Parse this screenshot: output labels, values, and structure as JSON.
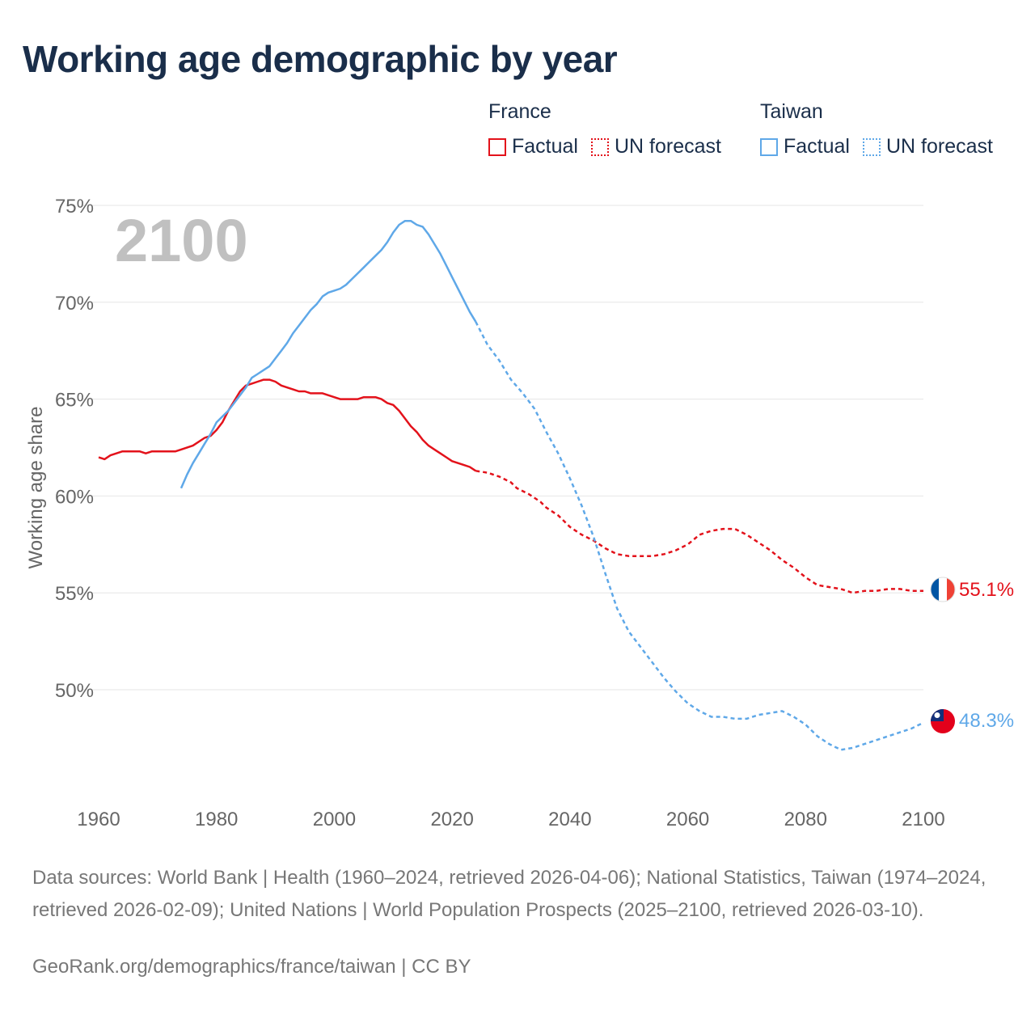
{
  "title": "Working age demographic by year",
  "legend": {
    "groups": [
      {
        "name": "France",
        "factual_label": "Factual",
        "forecast_label": "UN forecast",
        "color": "#e3121b"
      },
      {
        "name": "Taiwan",
        "factual_label": "Factual",
        "forecast_label": "UN forecast",
        "color": "#5fa8e8"
      }
    ]
  },
  "footer": {
    "sources": "Data sources: World Bank | Health (1960–2024, retrieved 2026-04-06); National Statistics, Taiwan (1974–2024, retrieved 2026-02-09); United Nations | World Population Prospects (2025–2100, retrieved 2026-03-10).",
    "credit": "GeoRank.org/demographics/france/taiwan | CC BY"
  },
  "chart_data": {
    "type": "line",
    "title": "Working age demographic by year",
    "year_label": "2100",
    "ylabel": "Working age share",
    "xlabel": "",
    "xlim": [
      1960,
      2100
    ],
    "ylim": [
      45,
      75
    ],
    "x_ticks": [
      1960,
      1980,
      2000,
      2020,
      2040,
      2060,
      2080,
      2100
    ],
    "x_tick_labels": [
      "1960",
      "1980",
      "2000",
      "2020",
      "2040",
      "2060",
      "2080",
      "2100"
    ],
    "y_ticks": [
      50,
      55,
      60,
      65,
      70,
      75
    ],
    "y_tick_labels": [
      "50%",
      "55%",
      "60%",
      "65%",
      "70%",
      "75%"
    ],
    "grid": true,
    "legend_position": "top-right",
    "series": [
      {
        "name": "France",
        "color": "#e3121b",
        "end_label": "55.1%",
        "factual": [
          [
            1960,
            62.0
          ],
          [
            1961,
            61.9
          ],
          [
            1962,
            62.1
          ],
          [
            1963,
            62.2
          ],
          [
            1964,
            62.3
          ],
          [
            1965,
            62.3
          ],
          [
            1966,
            62.3
          ],
          [
            1967,
            62.3
          ],
          [
            1968,
            62.2
          ],
          [
            1969,
            62.3
          ],
          [
            1970,
            62.3
          ],
          [
            1972,
            62.3
          ],
          [
            1973,
            62.3
          ],
          [
            1974,
            62.4
          ],
          [
            1976,
            62.6
          ],
          [
            1978,
            63.0
          ],
          [
            1979,
            63.1
          ],
          [
            1980,
            63.4
          ],
          [
            1981,
            63.8
          ],
          [
            1982,
            64.4
          ],
          [
            1983,
            64.9
          ],
          [
            1984,
            65.4
          ],
          [
            1985,
            65.7
          ],
          [
            1986,
            65.8
          ],
          [
            1987,
            65.9
          ],
          [
            1988,
            66.0
          ],
          [
            1989,
            66.0
          ],
          [
            1990,
            65.9
          ],
          [
            1991,
            65.7
          ],
          [
            1992,
            65.6
          ],
          [
            1993,
            65.5
          ],
          [
            1994,
            65.4
          ],
          [
            1995,
            65.4
          ],
          [
            1996,
            65.3
          ],
          [
            1997,
            65.3
          ],
          [
            1998,
            65.3
          ],
          [
            1999,
            65.2
          ],
          [
            2000,
            65.1
          ],
          [
            2001,
            65.0
          ],
          [
            2002,
            65.0
          ],
          [
            2003,
            65.0
          ],
          [
            2004,
            65.0
          ],
          [
            2005,
            65.1
          ],
          [
            2006,
            65.1
          ],
          [
            2007,
            65.1
          ],
          [
            2008,
            65.0
          ],
          [
            2009,
            64.8
          ],
          [
            2010,
            64.7
          ],
          [
            2011,
            64.4
          ],
          [
            2012,
            64.0
          ],
          [
            2013,
            63.6
          ],
          [
            2014,
            63.3
          ],
          [
            2015,
            62.9
          ],
          [
            2016,
            62.6
          ],
          [
            2017,
            62.4
          ],
          [
            2018,
            62.2
          ],
          [
            2019,
            62.0
          ],
          [
            2020,
            61.8
          ],
          [
            2021,
            61.7
          ],
          [
            2022,
            61.6
          ],
          [
            2023,
            61.5
          ],
          [
            2024,
            61.3
          ]
        ],
        "forecast": [
          [
            2024,
            61.3
          ],
          [
            2026,
            61.2
          ],
          [
            2028,
            61.0
          ],
          [
            2030,
            60.7
          ],
          [
            2031,
            60.4
          ],
          [
            2033,
            60.1
          ],
          [
            2035,
            59.7
          ],
          [
            2036,
            59.4
          ],
          [
            2038,
            59.0
          ],
          [
            2039,
            58.7
          ],
          [
            2040,
            58.4
          ],
          [
            2042,
            58.0
          ],
          [
            2044,
            57.7
          ],
          [
            2046,
            57.3
          ],
          [
            2048,
            57.0
          ],
          [
            2050,
            56.9
          ],
          [
            2052,
            56.9
          ],
          [
            2054,
            56.9
          ],
          [
            2056,
            57.0
          ],
          [
            2058,
            57.2
          ],
          [
            2060,
            57.5
          ],
          [
            2062,
            58.0
          ],
          [
            2064,
            58.2
          ],
          [
            2066,
            58.3
          ],
          [
            2068,
            58.3
          ],
          [
            2070,
            58.0
          ],
          [
            2072,
            57.6
          ],
          [
            2074,
            57.2
          ],
          [
            2076,
            56.7
          ],
          [
            2078,
            56.3
          ],
          [
            2080,
            55.8
          ],
          [
            2082,
            55.4
          ],
          [
            2084,
            55.3
          ],
          [
            2086,
            55.2
          ],
          [
            2088,
            55.0
          ],
          [
            2090,
            55.1
          ],
          [
            2092,
            55.1
          ],
          [
            2094,
            55.2
          ],
          [
            2096,
            55.2
          ],
          [
            2098,
            55.1
          ],
          [
            2100,
            55.1
          ]
        ]
      },
      {
        "name": "Taiwan",
        "color": "#5fa8e8",
        "end_label": "48.3%",
        "factual": [
          [
            1974,
            60.4
          ],
          [
            1975,
            61.1
          ],
          [
            1976,
            61.7
          ],
          [
            1977,
            62.2
          ],
          [
            1978,
            62.7
          ],
          [
            1979,
            63.2
          ],
          [
            1980,
            63.8
          ],
          [
            1981,
            64.1
          ],
          [
            1982,
            64.4
          ],
          [
            1983,
            64.8
          ],
          [
            1984,
            65.2
          ],
          [
            1985,
            65.6
          ],
          [
            1986,
            66.1
          ],
          [
            1987,
            66.3
          ],
          [
            1988,
            66.5
          ],
          [
            1989,
            66.7
          ],
          [
            1990,
            67.1
          ],
          [
            1991,
            67.5
          ],
          [
            1992,
            67.9
          ],
          [
            1993,
            68.4
          ],
          [
            1994,
            68.8
          ],
          [
            1995,
            69.2
          ],
          [
            1996,
            69.6
          ],
          [
            1997,
            69.9
          ],
          [
            1998,
            70.3
          ],
          [
            1999,
            70.5
          ],
          [
            2000,
            70.6
          ],
          [
            2001,
            70.7
          ],
          [
            2002,
            70.9
          ],
          [
            2003,
            71.2
          ],
          [
            2004,
            71.5
          ],
          [
            2005,
            71.8
          ],
          [
            2006,
            72.1
          ],
          [
            2007,
            72.4
          ],
          [
            2008,
            72.7
          ],
          [
            2009,
            73.1
          ],
          [
            2010,
            73.6
          ],
          [
            2011,
            74.0
          ],
          [
            2012,
            74.2
          ],
          [
            2013,
            74.2
          ],
          [
            2014,
            74.0
          ],
          [
            2015,
            73.9
          ],
          [
            2016,
            73.5
          ],
          [
            2017,
            73.0
          ],
          [
            2018,
            72.5
          ],
          [
            2019,
            71.9
          ],
          [
            2020,
            71.3
          ],
          [
            2021,
            70.7
          ],
          [
            2022,
            70.1
          ],
          [
            2023,
            69.5
          ],
          [
            2024,
            69.0
          ]
        ],
        "forecast": [
          [
            2024,
            69.0
          ],
          [
            2026,
            67.8
          ],
          [
            2028,
            67.0
          ],
          [
            2030,
            66.0
          ],
          [
            2032,
            65.3
          ],
          [
            2034,
            64.5
          ],
          [
            2036,
            63.3
          ],
          [
            2038,
            62.2
          ],
          [
            2040,
            60.9
          ],
          [
            2042,
            59.5
          ],
          [
            2044,
            57.9
          ],
          [
            2046,
            56.0
          ],
          [
            2048,
            54.2
          ],
          [
            2050,
            53.0
          ],
          [
            2052,
            52.2
          ],
          [
            2054,
            51.4
          ],
          [
            2056,
            50.6
          ],
          [
            2058,
            49.9
          ],
          [
            2060,
            49.3
          ],
          [
            2062,
            48.9
          ],
          [
            2064,
            48.6
          ],
          [
            2066,
            48.6
          ],
          [
            2068,
            48.5
          ],
          [
            2070,
            48.5
          ],
          [
            2072,
            48.7
          ],
          [
            2074,
            48.8
          ],
          [
            2076,
            48.9
          ],
          [
            2078,
            48.6
          ],
          [
            2080,
            48.2
          ],
          [
            2082,
            47.6
          ],
          [
            2084,
            47.2
          ],
          [
            2086,
            46.9
          ],
          [
            2088,
            47.0
          ],
          [
            2090,
            47.2
          ],
          [
            2092,
            47.4
          ],
          [
            2094,
            47.6
          ],
          [
            2096,
            47.8
          ],
          [
            2098,
            48.0
          ],
          [
            2100,
            48.3
          ]
        ]
      }
    ]
  }
}
